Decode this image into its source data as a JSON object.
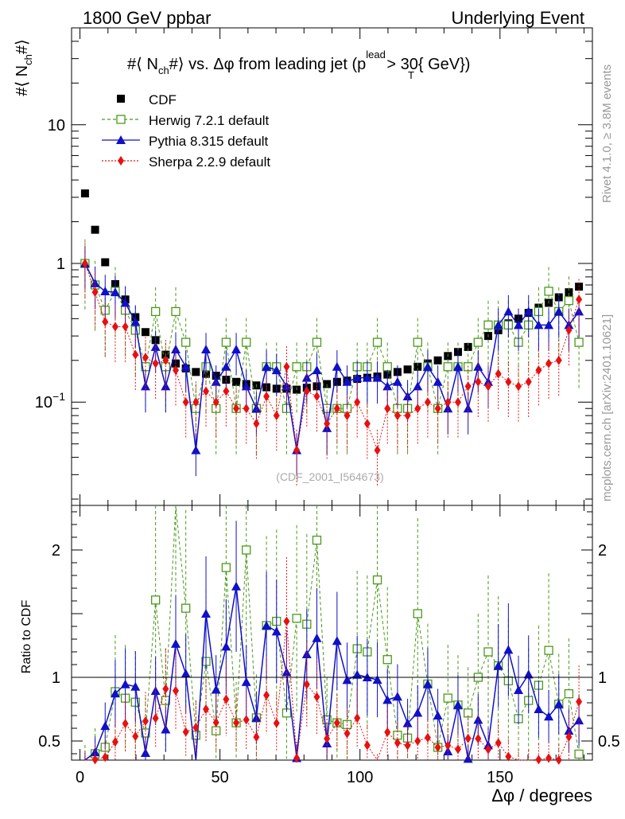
{
  "header": {
    "left": "1800 GeV ppbar",
    "right": "Underlying Event"
  },
  "side_text": {
    "rivet": "Rivet 4.1.0, ≥ 3.8M events",
    "mcplots": "mcplots.cern.ch [arXiv:2401.10621]"
  },
  "chart_data": {
    "type": "scatter",
    "title": "#⟨ N_ch#⟩ vs. Δφ from leading jet  (p_T^lead > 30{ GeV})",
    "title_parts": {
      "prefix": "#⟨ N",
      "ch": "ch",
      "mid": "#⟩ vs. Δφ from leading jet  (p",
      "lead": "lead",
      "t": "T",
      "suffix": " > 30{ GeV})"
    },
    "ylabel_parts": {
      "prefix": "#⟨ N",
      "ch": "ch",
      "suffix": "#⟩"
    },
    "xlabel": "Δφ / degrees",
    "ratio_ylabel": "Ratio to CDF",
    "watermark": "(CDF_2001_I564673)",
    "xlim": [
      -3,
      183
    ],
    "ylim": [
      0.018,
      50
    ],
    "yscale": "log",
    "ratio_ylim": [
      0.35,
      2.35
    ],
    "x_ticks": [
      "0",
      "50",
      "100",
      "150"
    ],
    "x_tick_values": [
      0,
      50,
      100,
      150
    ],
    "y_ticks": [
      "10^-1",
      "1",
      "10"
    ],
    "y_tick_values": [
      0.1,
      1,
      10
    ],
    "ratio_ticks": [
      "0.5",
      "1",
      "2"
    ],
    "ratio_tick_values": [
      0.5,
      1,
      2
    ],
    "x": [
      1.8,
      5.4,
      9,
      12.6,
      16.2,
      19.8,
      23.4,
      27,
      30.6,
      34.2,
      37.8,
      41.4,
      45,
      48.6,
      52.2,
      55.8,
      59.4,
      63,
      66.6,
      70.2,
      73.8,
      77.4,
      81,
      84.6,
      88.2,
      91.8,
      95.4,
      99,
      102.6,
      106.2,
      109.8,
      113.4,
      117,
      120.6,
      124.2,
      127.8,
      131.4,
      135,
      138.6,
      142.2,
      145.8,
      149.4,
      153,
      156.6,
      160.2,
      163.8,
      167.4,
      171,
      174.6,
      178.2
    ],
    "legend": [
      {
        "name": "CDF",
        "color": "#000000",
        "marker": "square-filled"
      },
      {
        "name": "Herwig 7.2.1 default",
        "color": "#4a9a1a",
        "marker": "square-open"
      },
      {
        "name": "Pythia 8.315 default",
        "color": "#1010c8",
        "marker": "triangle"
      },
      {
        "name": "Sherpa 2.2.9 default",
        "color": "#e81010",
        "marker": "diamond"
      }
    ],
    "series": [
      {
        "name": "CDF",
        "values": [
          3.2,
          1.75,
          1.02,
          0.71,
          0.55,
          0.41,
          0.32,
          0.28,
          0.22,
          0.19,
          0.175,
          0.165,
          0.16,
          0.155,
          0.145,
          0.14,
          0.135,
          0.132,
          0.128,
          0.125,
          0.125,
          0.123,
          0.127,
          0.13,
          0.135,
          0.14,
          0.143,
          0.147,
          0.15,
          0.153,
          0.158,
          0.165,
          0.172,
          0.18,
          0.19,
          0.2,
          0.215,
          0.23,
          0.25,
          0.27,
          0.3,
          0.33,
          0.37,
          0.4,
          0.44,
          0.48,
          0.52,
          0.57,
          0.62,
          0.68
        ]
      },
      {
        "name": "Herwig 7.2.1 default",
        "values": [
          1.0,
          0.7,
          0.46,
          0.63,
          0.46,
          0.33,
          0.18,
          0.45,
          0.18,
          0.45,
          0.27,
          0.09,
          0.18,
          0.09,
          0.27,
          0.09,
          0.27,
          0.09,
          0.18,
          0.18,
          0.09,
          0.18,
          0.18,
          0.27,
          0.09,
          0.09,
          0.09,
          0.18,
          0.18,
          0.27,
          0.18,
          0.09,
          0.09,
          0.27,
          0.18,
          0.09,
          0.18,
          0.18,
          0.18,
          0.27,
          0.36,
          0.36,
          0.36,
          0.27,
          0.36,
          0.45,
          0.63,
          0.45,
          0.54,
          0.27
        ]
      },
      {
        "name": "Pythia 8.315 default",
        "values": [
          1.0,
          0.72,
          0.63,
          0.62,
          0.52,
          0.38,
          0.13,
          0.25,
          0.13,
          0.24,
          0.18,
          0.045,
          0.24,
          0.14,
          0.18,
          0.24,
          0.13,
          0.09,
          0.18,
          0.17,
          0.13,
          0.045,
          0.15,
          0.17,
          0.065,
          0.18,
          0.14,
          0.15,
          0.15,
          0.15,
          0.13,
          0.14,
          0.11,
          0.13,
          0.18,
          0.14,
          0.09,
          0.18,
          0.09,
          0.18,
          0.14,
          0.36,
          0.45,
          0.36,
          0.45,
          0.36,
          0.36,
          0.45,
          0.36,
          0.45
        ]
      },
      {
        "name": "Sherpa 2.2.9 default",
        "values": [
          1.0,
          0.62,
          0.38,
          0.35,
          0.35,
          0.22,
          0.21,
          0.19,
          0.2,
          0.17,
          0.1,
          0.1,
          0.12,
          0.1,
          0.12,
          0.09,
          0.09,
          0.07,
          0.11,
          0.08,
          0.18,
          0.045,
          0.12,
          0.11,
          0.07,
          0.09,
          0.08,
          0.1,
          0.07,
          0.045,
          0.09,
          0.08,
          0.08,
          0.09,
          0.1,
          0.09,
          0.1,
          0.1,
          0.13,
          0.14,
          0.13,
          0.16,
          0.14,
          0.13,
          0.14,
          0.17,
          0.19,
          0.2,
          0.33,
          0.55
        ]
      }
    ]
  }
}
